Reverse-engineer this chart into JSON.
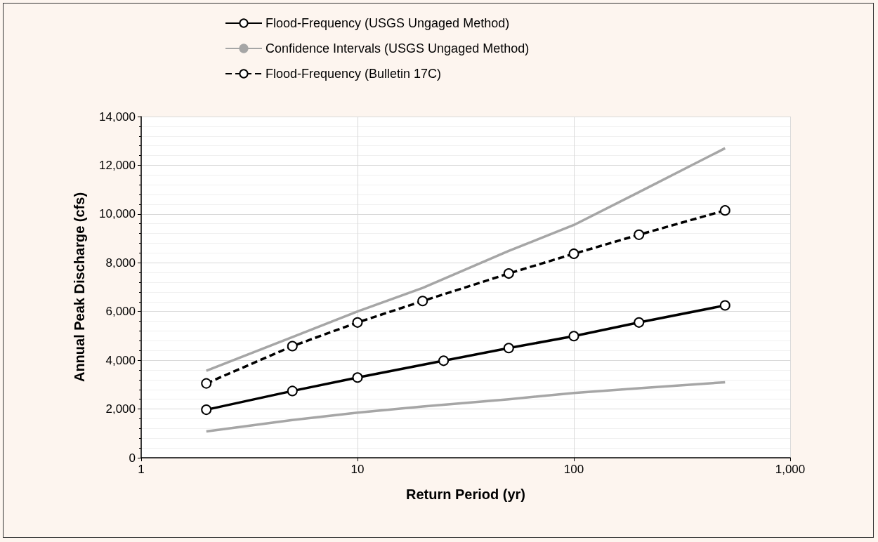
{
  "chart_data": {
    "type": "line",
    "xlabel": "Return Period (yr)",
    "ylabel": "Annual Peak Discharge (cfs)",
    "log": "x",
    "grid": true,
    "legend": "top",
    "xlim": [
      1,
      1000
    ],
    "xticks": [
      1,
      10,
      100,
      {
        "value": 1000,
        "label": "1,000"
      }
    ],
    "ylim": [
      0,
      14000
    ],
    "yticks": [
      0,
      {
        "value": 2000,
        "label": "2,000"
      },
      {
        "value": 4000,
        "label": "4,000"
      },
      {
        "value": 6000,
        "label": "6,000"
      },
      {
        "value": 8000,
        "label": "8,000"
      },
      {
        "value": 10000,
        "label": "10,000"
      },
      {
        "value": 12000,
        "label": "12,000"
      },
      {
        "value": 14000,
        "label": "14,000"
      }
    ],
    "series": [
      {
        "name": "Flood-Frequency (USGS Ungaged Method)",
        "color": "#000000",
        "marker": "circle",
        "line_style": "solid",
        "x": [
          2,
          5,
          10,
          25,
          50,
          100,
          200,
          500
        ],
        "values": [
          1970,
          2740,
          3290,
          3980,
          4500,
          4990,
          5550,
          6250
        ]
      },
      {
        "name": "Confidence Intervals (USGS Ungaged Method)",
        "color": "#a6a6a6",
        "marker": "none",
        "line_style": "solid",
        "x": [
          2,
          5,
          10,
          20,
          50,
          100,
          200,
          500
        ],
        "values": [
          3570,
          4950,
          6000,
          6970,
          8490,
          9550,
          10900,
          12700
        ]
      },
      {
        "color": "#a6a6a6",
        "marker": "none",
        "line_style": "solid",
        "x": [
          2,
          5,
          10,
          20,
          50,
          100,
          200,
          500
        ],
        "values": [
          1080,
          1550,
          1850,
          2100,
          2400,
          2660,
          2850,
          3100
        ]
      },
      {
        "name": "Flood-Frequency (Bulletin 17C)",
        "color": "#000000",
        "marker": "circle",
        "line_style": "dashed",
        "x": [
          2,
          5,
          10,
          20,
          50,
          100,
          200,
          500
        ],
        "values": [
          3050,
          4580,
          5550,
          6430,
          7560,
          8370,
          9150,
          10150
        ]
      }
    ]
  }
}
